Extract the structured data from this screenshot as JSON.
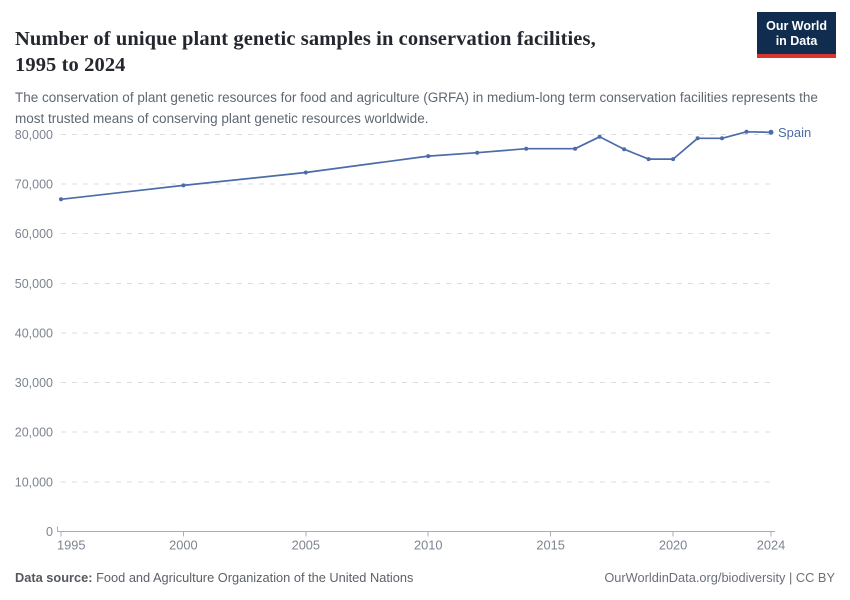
{
  "header": {
    "title_line1": "Number of unique plant genetic samples in conservation facilities,",
    "title_line2": "1995 to 2024",
    "subtitle": "The conservation of plant genetic resources for food and agriculture (GRFA) in medium-long term conservation facilities represents the most trusted means of conserving plant genetic resources worldwide.",
    "logo_line1": "Our World",
    "logo_line2": "in Data"
  },
  "chart_data": {
    "type": "line",
    "title": "Number of unique plant genetic samples in conservation facilities, 1995 to 2024",
    "x": [
      1995,
      2000,
      2005,
      2010,
      2012,
      2014,
      2016,
      2017,
      2018,
      2019,
      2020,
      2021,
      2022,
      2023,
      2024
    ],
    "series": [
      {
        "name": "Spain",
        "color": "#4c6ba9",
        "values": [
          66900,
          69700,
          72300,
          75600,
          76300,
          77100,
          77100,
          79500,
          77000,
          75000,
          75000,
          79200,
          79200,
          80500,
          80400
        ]
      }
    ],
    "xlabel": "",
    "ylabel": "",
    "xlim": [
      1995,
      2024
    ],
    "ylim": [
      0,
      80000
    ],
    "x_ticks": [
      1995,
      2000,
      2005,
      2010,
      2015,
      2020,
      2024
    ],
    "y_ticks": [
      0,
      10000,
      20000,
      30000,
      40000,
      50000,
      60000,
      70000,
      80000
    ],
    "y_tick_labels": [
      "0",
      "10,000",
      "20,000",
      "30,000",
      "40,000",
      "50,000",
      "60,000",
      "70,000",
      "80,000"
    ],
    "grid": "horizontal-dashed",
    "legend": "line-end-label"
  },
  "footer": {
    "source_label": "Data source:",
    "source_value": "Food and Agriculture Organization of the United Nations",
    "credit": "OurWorldinData.org/biodiversity | CC BY"
  },
  "colors": {
    "line": "#4c6ba9",
    "grid": "#d9dde2",
    "axis": "#a8aeb8",
    "tick_text": "#7d8490",
    "title_text": "#24272e",
    "subtitle_text": "#5f6770",
    "logo_bg": "#102d50",
    "logo_red": "#d8352f",
    "background": "#ffffff"
  }
}
